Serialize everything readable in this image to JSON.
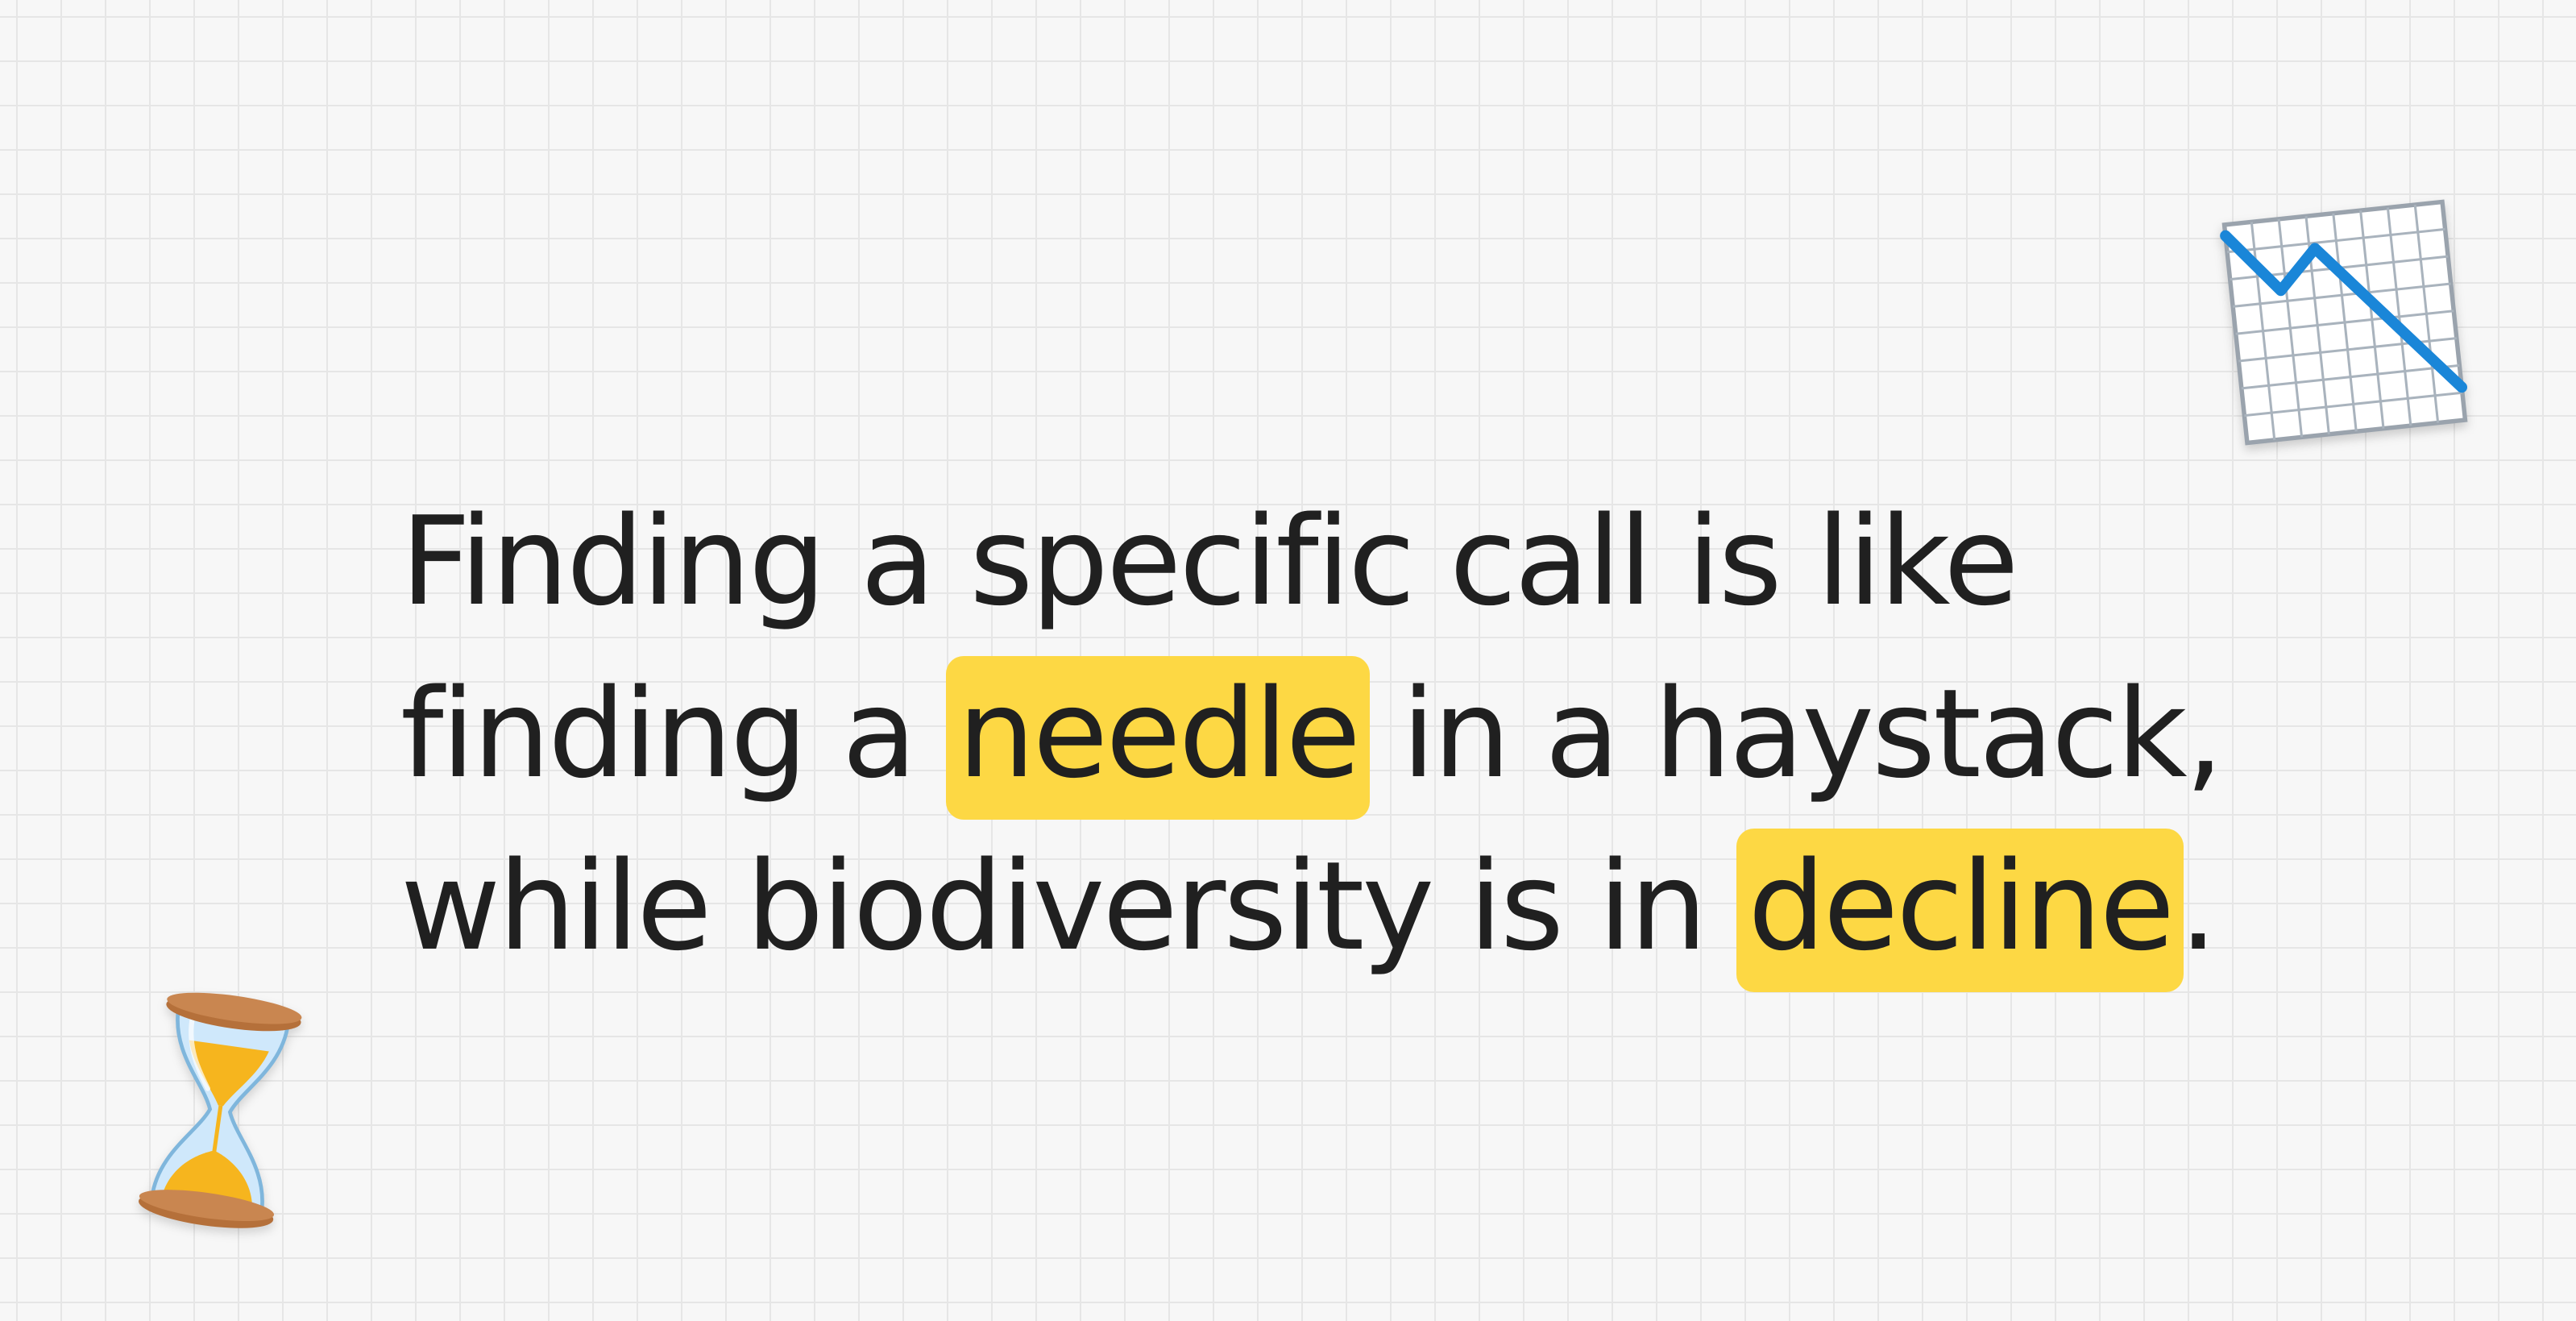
{
  "slide": {
    "lines": [
      {
        "before": "Finding a specific call is like",
        "highlight": "",
        "after": ""
      },
      {
        "before": "finding a ",
        "highlight": "needle",
        "after": " in a haystack,"
      },
      {
        "before": "while biodiversity is in ",
        "highlight": "decline",
        "after": "."
      }
    ]
  },
  "decorations": {
    "top_right": "chart-decreasing-icon",
    "bottom_left": "hourglass-icon"
  },
  "colors": {
    "background": "#f7f7f7",
    "grid_line": "#e6e6e6",
    "text": "#202020",
    "highlight": "#fdd844",
    "chart_line": "#1a86d8"
  }
}
